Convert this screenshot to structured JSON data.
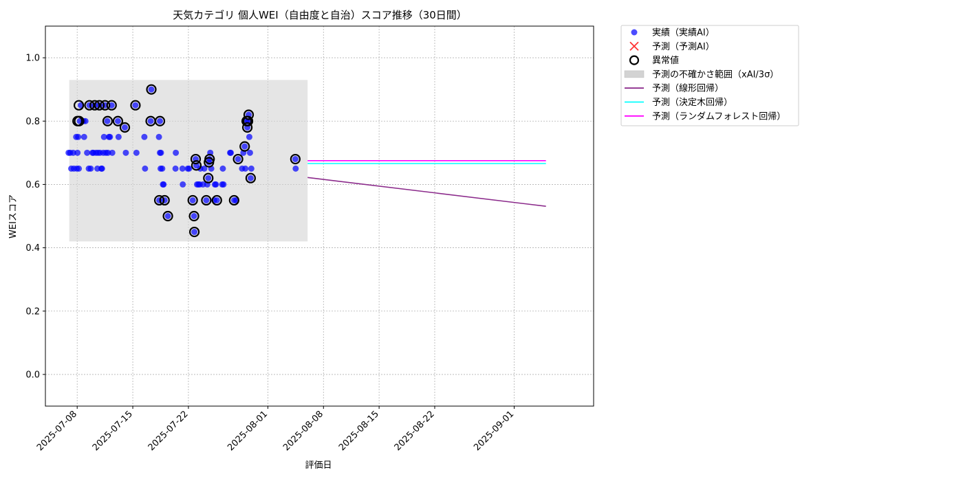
{
  "chart_data": {
    "type": "scatter",
    "title": "天気カテゴリ 個人WEI（自由度と自治）スコア推移（30日間）",
    "xlabel": "評価日",
    "ylabel": "WEIスコア",
    "xlim": [
      "2025-07-04",
      "2025-09-11"
    ],
    "ylim": [
      -0.1,
      1.1
    ],
    "grid": true,
    "legend_position": "outside-top-right",
    "x_ticks": [
      "2025-07-08",
      "2025-07-15",
      "2025-07-22",
      "2025-08-01",
      "2025-08-08",
      "2025-08-15",
      "2025-08-22",
      "2025-09-01"
    ],
    "y_ticks": [
      0.0,
      0.2,
      0.4,
      0.6,
      0.8,
      1.0
    ],
    "y_tick_labels": [
      "0.0",
      "0.2",
      "0.4",
      "0.6",
      "0.8",
      "1.0"
    ],
    "uncertainty_band": {
      "name": "予測の不確かさ範囲（xAI/3σ）",
      "x_range": [
        "2025-07-07",
        "2025-08-06"
      ],
      "y_range": [
        0.42,
        0.93
      ],
      "color": "#d3d3d3"
    },
    "series": [
      {
        "name": "実績（実績AI）",
        "kind": "scatter",
        "color": "#0000ff",
        "points": [
          [
            "2025-07-06 22:00",
            0.7
          ],
          [
            "2025-07-07 03:00",
            0.7
          ],
          [
            "2025-07-07 06:00",
            0.65
          ],
          [
            "2025-07-07 12:00",
            0.7
          ],
          [
            "2025-07-07 14:00",
            0.65
          ],
          [
            "2025-07-07 21:00",
            0.75
          ],
          [
            "2025-07-07 23:00",
            0.65
          ],
          [
            "2025-07-08 01:00",
            0.7
          ],
          [
            "2025-07-08 03:00",
            0.75
          ],
          [
            "2025-07-08 05:00",
            0.65
          ],
          [
            "2025-07-08 08:00",
            0.8
          ],
          [
            "2025-07-08 11:00",
            0.85
          ],
          [
            "2025-07-08 19:00",
            0.8
          ],
          [
            "2025-07-08 21:00",
            0.75
          ],
          [
            "2025-07-09 01:00",
            0.8
          ],
          [
            "2025-07-09 06:00",
            0.7
          ],
          [
            "2025-07-09 11:00",
            0.65
          ],
          [
            "2025-07-09 13:00",
            0.85
          ],
          [
            "2025-07-09 17:00",
            0.65
          ],
          [
            "2025-07-09 22:00",
            0.7
          ],
          [
            "2025-07-10 01:00",
            0.7
          ],
          [
            "2025-07-10 05:00",
            0.85
          ],
          [
            "2025-07-10 09:00",
            0.7
          ],
          [
            "2025-07-10 13:00",
            0.65
          ],
          [
            "2025-07-10 15:00",
            0.7
          ],
          [
            "2025-07-10 19:00",
            0.85
          ],
          [
            "2025-07-10 21:00",
            0.7
          ],
          [
            "2025-07-11 01:00",
            0.65
          ],
          [
            "2025-07-11 03:00",
            0.65
          ],
          [
            "2025-07-11 07:00",
            0.7
          ],
          [
            "2025-07-11 09:00",
            0.75
          ],
          [
            "2025-07-11 12:00",
            0.85
          ],
          [
            "2025-07-11 15:00",
            0.7
          ],
          [
            "2025-07-11 19:00",
            0.8
          ],
          [
            "2025-07-11 21:00",
            0.7
          ],
          [
            "2025-07-12 00:00",
            0.75
          ],
          [
            "2025-07-12 03:00",
            0.75
          ],
          [
            "2025-07-12 08:00",
            0.85
          ],
          [
            "2025-07-12 10:00",
            0.7
          ],
          [
            "2025-07-13 03:00",
            0.8
          ],
          [
            "2025-07-13 05:00",
            0.75
          ],
          [
            "2025-07-14 00:00",
            0.78
          ],
          [
            "2025-07-14 03:00",
            0.7
          ],
          [
            "2025-07-15 08:00",
            0.85
          ],
          [
            "2025-07-15 11:00",
            0.7
          ],
          [
            "2025-07-16 11:00",
            0.75
          ],
          [
            "2025-07-16 13:00",
            0.65
          ],
          [
            "2025-07-17 08:00",
            0.9
          ],
          [
            "2025-07-17 06:00",
            0.8
          ],
          [
            "2025-07-18 07:00",
            0.75
          ],
          [
            "2025-07-18 10:00",
            0.7
          ],
          [
            "2025-07-18 13:00",
            0.7
          ],
          [
            "2025-07-18 17:00",
            0.65
          ],
          [
            "2025-07-18 19:00",
            0.6
          ],
          [
            "2025-07-18 21:00",
            0.6
          ],
          [
            "2025-07-18 10:00",
            0.8
          ],
          [
            "2025-07-18 12:00",
            0.65
          ],
          [
            "2025-07-18 08:00",
            0.55
          ],
          [
            "2025-07-19 00:00",
            0.55
          ],
          [
            "2025-07-19 10:00",
            0.5
          ],
          [
            "2025-07-20 10:00",
            0.7
          ],
          [
            "2025-07-20 09:00",
            0.65
          ],
          [
            "2025-07-21 06:00",
            0.65
          ],
          [
            "2025-07-21 07:00",
            0.6
          ],
          [
            "2025-07-21 22:00",
            0.65
          ],
          [
            "2025-07-22 02:00",
            0.65
          ],
          [
            "2025-07-22 13:00",
            0.55
          ],
          [
            "2025-07-22 17:00",
            0.5
          ],
          [
            "2025-07-22 18:00",
            0.45
          ],
          [
            "2025-07-22 22:00",
            0.68
          ],
          [
            "2025-07-23 00:00",
            0.66
          ],
          [
            "2025-07-23 02:00",
            0.6
          ],
          [
            "2025-07-23 06:00",
            0.6
          ],
          [
            "2025-07-23 10:00",
            0.6
          ],
          [
            "2025-07-23 12:00",
            0.65
          ],
          [
            "2025-07-23 20:00",
            0.6
          ],
          [
            "2025-07-24 00:00",
            0.65
          ],
          [
            "2025-07-24 06:00",
            0.55
          ],
          [
            "2025-07-24 09:00",
            0.6
          ],
          [
            "2025-07-24 12:00",
            0.62
          ],
          [
            "2025-07-24 14:00",
            0.67
          ],
          [
            "2025-07-24 16:00",
            0.68
          ],
          [
            "2025-07-24 18:00",
            0.7
          ],
          [
            "2025-07-24 21:00",
            0.65
          ],
          [
            "2025-07-25 06:00",
            0.55
          ],
          [
            "2025-07-25 08:00",
            0.6
          ],
          [
            "2025-07-25 11:00",
            0.6
          ],
          [
            "2025-07-25 14:00",
            0.55
          ],
          [
            "2025-07-26 06:00",
            0.6
          ],
          [
            "2025-07-26 08:00",
            0.65
          ],
          [
            "2025-07-26 10:00",
            0.6
          ],
          [
            "2025-07-27 06:00",
            0.7
          ],
          [
            "2025-07-27 08:00",
            0.7
          ],
          [
            "2025-07-27 18:00",
            0.55
          ],
          [
            "2025-07-28 00:00",
            0.55
          ],
          [
            "2025-07-28 06:00",
            0.68
          ],
          [
            "2025-07-28 18:00",
            0.65
          ],
          [
            "2025-07-28 22:00",
            0.7
          ],
          [
            "2025-07-29 02:00",
            0.72
          ],
          [
            "2025-07-29 04:00",
            0.65
          ],
          [
            "2025-07-29 08:00",
            0.8
          ],
          [
            "2025-07-29 10:00",
            0.78
          ],
          [
            "2025-07-29 12:00",
            0.8
          ],
          [
            "2025-07-29 14:00",
            0.82
          ],
          [
            "2025-07-29 16:00",
            0.75
          ],
          [
            "2025-07-29 18:00",
            0.7
          ],
          [
            "2025-07-29 20:00",
            0.62
          ],
          [
            "2025-07-29 22:00",
            0.65
          ],
          [
            "2025-08-04 11:00",
            0.68
          ],
          [
            "2025-08-04 12:00",
            0.65
          ]
        ]
      },
      {
        "name": "予測（予測AI）",
        "kind": "scatter",
        "marker": "x",
        "color": "#ff0000",
        "points": []
      },
      {
        "name": "異常値",
        "kind": "outlier-ring",
        "color": "#000000",
        "points": [
          [
            "2025-07-08 05:00",
            0.85
          ],
          [
            "2025-07-08 01:00",
            0.8
          ],
          [
            "2025-07-08 06:00",
            0.8
          ],
          [
            "2025-07-09 13:00",
            0.85
          ],
          [
            "2025-07-10 05:00",
            0.85
          ],
          [
            "2025-07-10 19:00",
            0.85
          ],
          [
            "2025-07-11 12:00",
            0.85
          ],
          [
            "2025-07-12 08:00",
            0.85
          ],
          [
            "2025-07-11 20:00",
            0.8
          ],
          [
            "2025-07-13 03:00",
            0.8
          ],
          [
            "2025-07-14 00:00",
            0.78
          ],
          [
            "2025-07-15 08:00",
            0.85
          ],
          [
            "2025-07-17 08:00",
            0.9
          ],
          [
            "2025-07-17 06:00",
            0.8
          ],
          [
            "2025-07-18 10:00",
            0.8
          ],
          [
            "2025-07-18 08:00",
            0.55
          ],
          [
            "2025-07-19 00:00",
            0.55
          ],
          [
            "2025-07-19 10:00",
            0.5
          ],
          [
            "2025-07-22 13:00",
            0.55
          ],
          [
            "2025-07-22 17:00",
            0.5
          ],
          [
            "2025-07-22 18:00",
            0.45
          ],
          [
            "2025-07-22 22:00",
            0.68
          ],
          [
            "2025-07-23 00:00",
            0.66
          ],
          [
            "2025-07-24 06:00",
            0.55
          ],
          [
            "2025-07-24 12:00",
            0.62
          ],
          [
            "2025-07-24 14:00",
            0.67
          ],
          [
            "2025-07-24 16:00",
            0.68
          ],
          [
            "2025-07-25 14:00",
            0.55
          ],
          [
            "2025-07-27 18:00",
            0.55
          ],
          [
            "2025-07-28 06:00",
            0.68
          ],
          [
            "2025-07-29 02:00",
            0.72
          ],
          [
            "2025-07-29 08:00",
            0.8
          ],
          [
            "2025-07-29 10:00",
            0.78
          ],
          [
            "2025-07-29 12:00",
            0.8
          ],
          [
            "2025-07-29 14:00",
            0.82
          ],
          [
            "2025-07-29 20:00",
            0.62
          ],
          [
            "2025-08-04 11:00",
            0.68
          ]
        ]
      },
      {
        "name": "予測（線形回帰）",
        "kind": "line",
        "color": "#8b2a8b",
        "points": [
          [
            "2025-08-06",
            0.622
          ],
          [
            "2025-09-05",
            0.531
          ]
        ]
      },
      {
        "name": "予測（決定木回帰）",
        "kind": "line",
        "color": "#00ffff",
        "points": [
          [
            "2025-08-06",
            0.666
          ],
          [
            "2025-09-05",
            0.666
          ]
        ]
      },
      {
        "name": "予測（ランダムフォレスト回帰）",
        "kind": "line",
        "color": "#ff00ff",
        "points": [
          [
            "2025-08-06",
            0.675
          ],
          [
            "2025-09-05",
            0.675
          ]
        ]
      }
    ],
    "legend": [
      {
        "label": "実績（実績AI）",
        "symbol": "dot",
        "color": "#0000ff"
      },
      {
        "label": "予測（予測AI）",
        "symbol": "x",
        "color": "#ff0000"
      },
      {
        "label": "異常値",
        "symbol": "ring",
        "color": "#000000"
      },
      {
        "label": "予測の不確かさ範囲（xAI/3σ）",
        "symbol": "band",
        "color": "#d3d3d3"
      },
      {
        "label": "予測（線形回帰）",
        "symbol": "line",
        "color": "#8b2a8b"
      },
      {
        "label": "予測（決定木回帰）",
        "symbol": "line",
        "color": "#00ffff"
      },
      {
        "label": "予測（ランダムフォレスト回帰）",
        "symbol": "line",
        "color": "#ff00ff"
      }
    ]
  }
}
